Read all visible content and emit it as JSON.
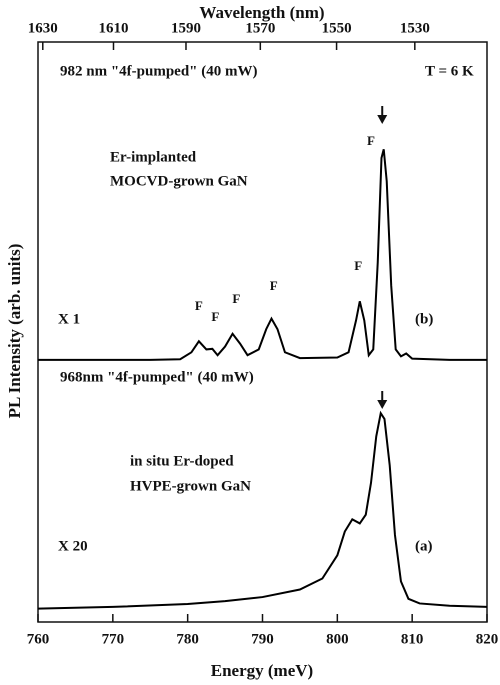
{
  "chart_data": {
    "type": "line",
    "x_label": "Energy (meV)",
    "x2_label": "Wavelength (nm)",
    "y_label": "PL Intensity (arb. units)",
    "xlim": [
      760,
      820
    ],
    "xticks": [
      760,
      770,
      780,
      790,
      800,
      810,
      820
    ],
    "x2ticks": [
      1630,
      1610,
      1590,
      1570,
      1550,
      1530
    ],
    "ylim": [
      0,
      100
    ],
    "series": [
      {
        "name": "(b)",
        "color": "#000000",
        "x": [
          760,
          775,
          779,
          780.5,
          781.5,
          782.5,
          783.3,
          784,
          785,
          786,
          787,
          788,
          789.5,
          790.5,
          791.2,
          792,
          793,
          795,
          800,
          801.5,
          802.5,
          803,
          803.6,
          804.2,
          804.8,
          805.4,
          805.9,
          806.2,
          806.6,
          807.2,
          807.8,
          808.5,
          809.2,
          810,
          815,
          820
        ],
        "values": [
          45.2,
          45.2,
          45.3,
          46.5,
          48.4,
          47,
          47.1,
          46,
          47.5,
          49.7,
          48,
          46,
          47,
          50.5,
          52.3,
          50.5,
          46.5,
          45.5,
          45.6,
          46.5,
          52,
          55.3,
          52,
          46,
          47,
          62,
          80,
          81.5,
          76,
          58,
          47,
          45.8,
          46.3,
          45.4,
          45.2,
          45.2
        ]
      },
      {
        "name": "(a)",
        "color": "#000000",
        "x": [
          760,
          770,
          780,
          785,
          790,
          795,
          798,
          800,
          801,
          802,
          803,
          803.8,
          804.5,
          805.2,
          805.8,
          806.3,
          807,
          807.7,
          808.5,
          809.5,
          811,
          815,
          820
        ],
        "values": [
          2.3,
          2.6,
          3.1,
          3.6,
          4.3,
          5.6,
          7.5,
          11.5,
          15.6,
          17.7,
          17,
          18.5,
          24,
          32,
          36,
          35,
          27,
          15,
          7,
          4,
          3.2,
          2.8,
          2.6
        ]
      }
    ],
    "annotations": [
      "982 nm \"4f-pumped\" (40 mW)",
      "T = 6 K",
      "Er-implanted",
      "MOCVD-grown GaN",
      "X 1",
      "968nm \"4f-pumped\" (40 mW)",
      "in situ Er-doped",
      "HVPE-grown GaN",
      "X 20",
      "F",
      "F",
      "F",
      "F",
      "F",
      "F"
    ]
  }
}
